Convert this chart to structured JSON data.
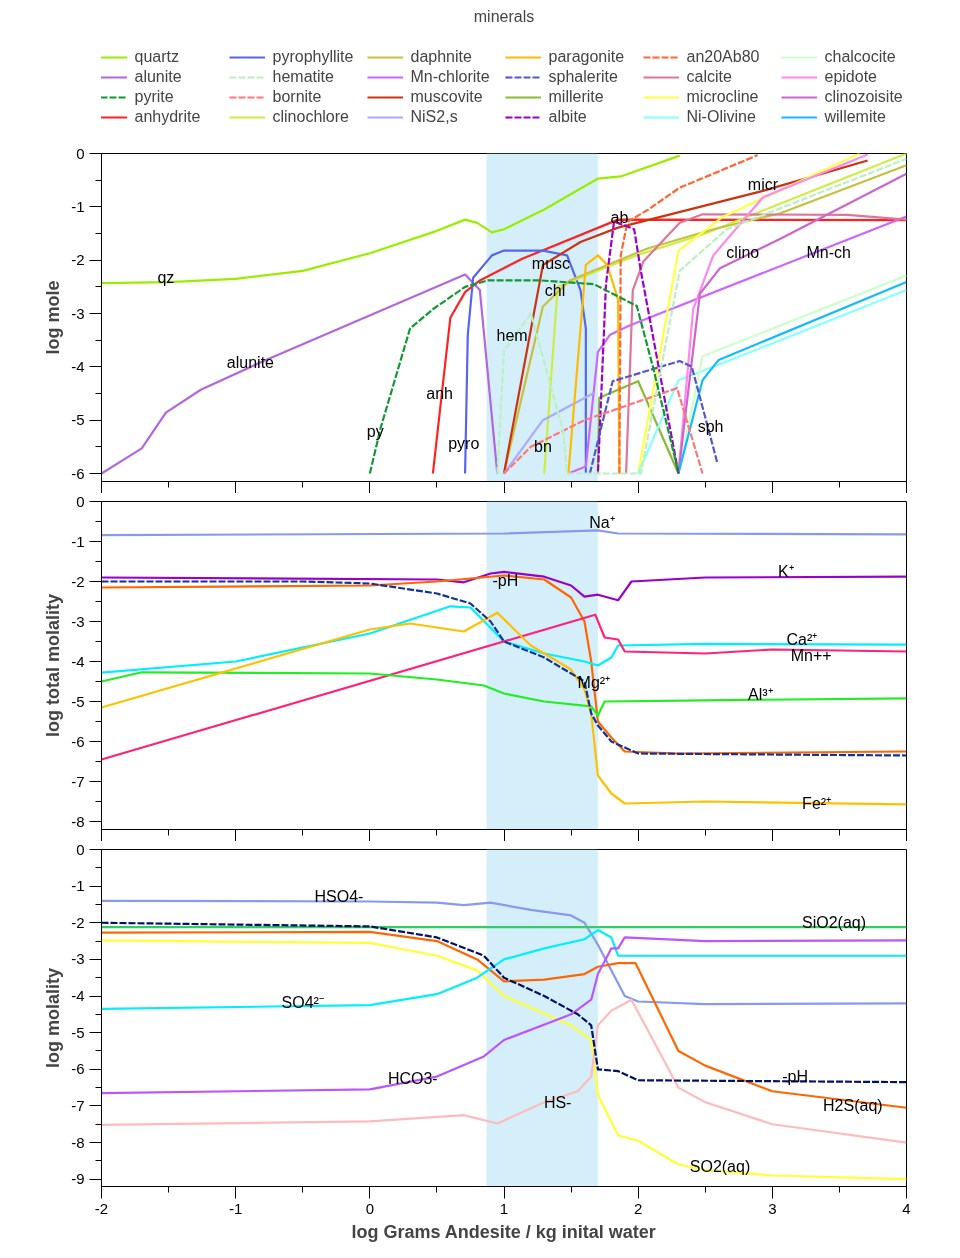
{
  "chart_data": [
    {
      "type": "line",
      "legend_title": "minerals",
      "legend": "top",
      "ylabel": "log mole",
      "tick_labels": "y",
      "xlim": [
        -2,
        4
      ],
      "ylim": [
        -6.15,
        0
      ],
      "xticks": [
        -2,
        {
          "value": -1.5,
          "label": null
        },
        -1,
        {
          "value": -0.5,
          "label": null
        },
        0,
        {
          "value": 0.5,
          "label": null
        },
        1,
        {
          "value": 1.5,
          "label": null
        },
        2,
        {
          "value": 2.5,
          "label": null
        },
        3,
        {
          "value": 3.5,
          "label": null
        },
        4
      ],
      "yticks": [
        0,
        {
          "value": -0.5,
          "label": null
        },
        -1,
        {
          "value": -1.5,
          "label": null
        },
        -2,
        {
          "value": -2.5,
          "label": null
        },
        -3,
        {
          "value": -3.5,
          "label": null
        },
        -4,
        {
          "value": -4.5,
          "label": null
        },
        -5,
        {
          "value": -5.5,
          "label": null
        },
        -6
      ],
      "bands": [
        {
          "axis": "x",
          "from": 0.87,
          "to": 1.7,
          "color": "#c5e9f7"
        }
      ],
      "series": [
        {
          "name": "quartz",
          "color": "#99ee00",
          "x": [
            -2,
            -1.5,
            -1,
            -0.5,
            0,
            0.5,
            0.71,
            0.8,
            0.91,
            1,
            1.3,
            1.7,
            1.87,
            2.31
          ],
          "values": [
            -2.43,
            -2.41,
            -2.35,
            -2.2,
            -1.87,
            -1.45,
            -1.24,
            -1.3,
            -1.48,
            -1.42,
            -1.05,
            -0.47,
            -0.43,
            -0.04
          ]
        },
        {
          "name": "alunite",
          "color": "#b266e0",
          "x": [
            -2,
            -1.7,
            -1.52,
            -1.26,
            -0.8,
            0.71,
            0.82,
            0.95
          ],
          "values": [
            -6,
            -5.53,
            -4.86,
            -4.43,
            -3.9,
            -2.27,
            -2.56,
            -6
          ]
        },
        {
          "name": "pyrite",
          "color": "#119933",
          "line_style": "dashed",
          "x": [
            0,
            0.08,
            0.3,
            0.47,
            0.71,
            0.88,
            1.27,
            1.67,
            1.99,
            2.11,
            2.3
          ],
          "values": [
            -6,
            -5.15,
            -3.28,
            -2.92,
            -2.5,
            -2.38,
            -2.38,
            -2.45,
            -2.86,
            -4.0,
            -5.98
          ]
        },
        {
          "name": "anhydrite",
          "color": "#ff2222",
          "x": [
            0.47,
            0.6,
            0.71,
            0.82,
            1.14,
            1.85,
            4
          ],
          "values": [
            -6,
            -3.08,
            -2.6,
            -2.38,
            -1.97,
            -1.24,
            -1.25
          ]
        },
        {
          "name": "pyrophyllite",
          "color": "#5566ee",
          "x": [
            0.71,
            0.73,
            0.77,
            0.91,
            1.0,
            1.29,
            1.47,
            1.57,
            1.61,
            1.61
          ],
          "values": [
            -6,
            -3.4,
            -2.33,
            -1.91,
            -1.82,
            -1.82,
            -1.91,
            -2.56,
            -3.28,
            -6
          ]
        },
        {
          "name": "hematite",
          "color": "#bbf0c0",
          "line_style": "dashed",
          "x": [
            0.95,
            1.0,
            1.2,
            1.44,
            1.47,
            2.02,
            2.31,
            2.66,
            4
          ],
          "values": [
            -6,
            -3.7,
            -3.0,
            -5.2,
            -6,
            -6,
            -2.2,
            -1.42,
            -0.1
          ]
        },
        {
          "name": "bornite",
          "color": "#ff7777",
          "line_style": "dashed",
          "x": [
            1.0,
            1.2,
            1.6,
            2.29,
            2.48
          ],
          "values": [
            -6,
            -5.5,
            -5.0,
            -4.4,
            -6
          ]
        },
        {
          "name": "clinochlore",
          "color": "#ccee44",
          "x": [
            1.3,
            1.4,
            2.0,
            2.5,
            4
          ],
          "values": [
            -6,
            -2.5,
            -1.9,
            -1.5,
            0
          ]
        },
        {
          "name": "daphnite",
          "color": "#c8c040",
          "x": [
            1.0,
            1.29,
            1.49,
            2.07,
            2.56,
            3.06,
            4
          ],
          "values": [
            -6,
            -2.87,
            -2.38,
            -1.78,
            -1.42,
            -1.12,
            -0.22
          ]
        },
        {
          "name": "Mn-chlorite",
          "color": "#cc66ff",
          "x": [
            1.48,
            1.61,
            1.7,
            1.79,
            1.94,
            4
          ],
          "values": [
            -6,
            -5.87,
            -3.72,
            -3.4,
            -3.22,
            -1.18
          ]
        },
        {
          "name": "muscovite",
          "color": "#cc3311",
          "x": [
            1.0,
            1.29,
            1.57,
            1.85,
            2.46,
            2.93,
            3.71
          ],
          "values": [
            -6,
            -2.09,
            -1.66,
            -1.39,
            -1.0,
            -0.7,
            -0.13
          ]
        },
        {
          "name": "NiS2,s",
          "color": "#aaaaff",
          "x": [
            1.0,
            1.29,
            1.67
          ],
          "values": [
            -6,
            -5.0,
            -4.49
          ]
        },
        {
          "name": "paragonite",
          "color": "#ffbb00",
          "x": [
            1.48,
            1.61,
            1.7,
            1.77,
            1.85,
            1.86
          ],
          "values": [
            -6,
            -2.09,
            -1.91,
            -2.09,
            -2.74,
            -6
          ]
        },
        {
          "name": "sphalerite",
          "color": "#5555cc",
          "line_style": "dashed",
          "x": [
            1.64,
            1.81,
            2.31,
            2.4,
            2.59
          ],
          "values": [
            -6,
            -4.27,
            -3.89,
            -4.0,
            -5.8
          ]
        },
        {
          "name": "millerite",
          "color": "#88bb33",
          "x": [
            1.7,
            1.71,
            2.0,
            2.3
          ],
          "values": [
            -6,
            -4.58,
            -4.27,
            -6
          ]
        },
        {
          "name": "albite",
          "color": "#9900cc",
          "line_style": "dashed",
          "x": [
            1.7,
            1.76,
            1.82,
            1.9,
            1.97,
            2.02,
            2.3
          ],
          "values": [
            -6,
            -2.45,
            -1.28,
            -1.35,
            -1.42,
            -2.2,
            -6
          ]
        },
        {
          "name": "an20Ab80",
          "color": "#ff6633",
          "line_style": "dashed",
          "x": [
            1.86,
            1.87,
            1.92,
            2.07,
            2.31,
            2.56,
            2.89
          ],
          "values": [
            -6,
            -1.91,
            -1.28,
            -1.06,
            -0.64,
            -0.38,
            -0.03
          ]
        },
        {
          "name": "calcite",
          "color": "#dd7799",
          "x": [
            1.91,
            1.96,
            2.04,
            2.31,
            2.48,
            3.56,
            4
          ],
          "values": [
            -6,
            -2.56,
            -2.02,
            -1.3,
            -1.14,
            -1.15,
            -1.24
          ]
        },
        {
          "name": "microcline",
          "color": "#ffff44",
          "x": [
            2.0,
            2.3,
            2.63,
            3.65
          ],
          "values": [
            -6,
            -1.82,
            -1.19,
            0
          ]
        },
        {
          "name": "Ni-Olivine",
          "color": "#88ffff",
          "x": [
            2.0,
            2.3,
            2.56,
            4
          ],
          "values": [
            -6,
            -4.25,
            -4.0,
            -2.56
          ]
        },
        {
          "name": "chalcocite",
          "color": "#ccffcc",
          "x": [
            2.3,
            2.48,
            4
          ],
          "values": [
            -6,
            -3.8,
            -2.29
          ]
        },
        {
          "name": "epidote",
          "color": "#ff88ee",
          "x": [
            2.3,
            2.41,
            2.56,
            2.93,
            3.71
          ],
          "values": [
            -6,
            -2.92,
            -1.91,
            -0.82,
            -0.02
          ]
        },
        {
          "name": "clinozoisite",
          "color": "#cc66cc",
          "x": [
            2.3,
            2.46,
            2.61,
            3.06,
            4
          ],
          "values": [
            -6,
            -2.63,
            -2.15,
            -1.6,
            -0.38
          ]
        },
        {
          "name": "willemite",
          "color": "#11bbff",
          "x": [
            2.3,
            2.48,
            2.6,
            4
          ],
          "values": [
            -6,
            -4.25,
            -3.87,
            -2.41
          ]
        }
      ],
      "annotations": [
        {
          "text": "qz",
          "x": -1.52,
          "y": -2.32
        },
        {
          "text": "alunite",
          "x": -0.89,
          "y": -3.91
        },
        {
          "text": "py",
          "x": 0.04,
          "y": -5.22
        },
        {
          "text": "anh",
          "x": 0.52,
          "y": -4.5
        },
        {
          "text": "pyro",
          "x": 0.7,
          "y": -5.44
        },
        {
          "text": "hem",
          "x": 1.06,
          "y": -3.42
        },
        {
          "text": "bn",
          "x": 1.29,
          "y": -5.5
        },
        {
          "text": "musc",
          "x": 1.35,
          "y": -2.07
        },
        {
          "text": "chl",
          "x": 1.38,
          "y": -2.56
        },
        {
          "text": "ab",
          "x": 1.86,
          "y": -1.2
        },
        {
          "text": "micr",
          "x": 2.93,
          "y": -0.59
        },
        {
          "text": "clino",
          "x": 2.78,
          "y": -1.86
        },
        {
          "text": "Mn-ch",
          "x": 3.42,
          "y": -1.85
        },
        {
          "text": "sph",
          "x": 2.54,
          "y": -5.11
        }
      ]
    },
    {
      "type": "line",
      "ylabel": "log total molality",
      "tick_labels": "y",
      "xlim": [
        -2,
        4
      ],
      "ylim": [
        -8.2,
        0
      ],
      "xticks": [
        -2,
        {
          "value": -1.5,
          "label": null
        },
        -1,
        {
          "value": -0.5,
          "label": null
        },
        0,
        {
          "value": 0.5,
          "label": null
        },
        1,
        {
          "value": 1.5,
          "label": null
        },
        2,
        {
          "value": 2.5,
          "label": null
        },
        3,
        {
          "value": 3.5,
          "label": null
        },
        4
      ],
      "yticks": [
        0,
        {
          "value": -0.5,
          "label": null
        },
        -1,
        {
          "value": -1.5,
          "label": null
        },
        -2,
        {
          "value": -2.5,
          "label": null
        },
        -3,
        {
          "value": -3.5,
          "label": null
        },
        -4,
        {
          "value": -4.5,
          "label": null
        },
        -5,
        {
          "value": -5.5,
          "label": null
        },
        -6,
        {
          "value": -6.5,
          "label": null
        },
        -7,
        {
          "value": -7.5,
          "label": null
        },
        -8
      ],
      "bands": [
        {
          "axis": "x",
          "from": 0.87,
          "to": 1.7,
          "color": "#c5e9f7"
        }
      ],
      "series": [
        {
          "color": "#8899ee",
          "x": [
            -2,
            1,
            1.7,
            1.85,
            4
          ],
          "values": [
            -0.84,
            -0.8,
            -0.72,
            -0.8,
            -0.82
          ]
        },
        {
          "color": "#9900cc",
          "x": [
            -2,
            0.5,
            0.7,
            0.9,
            1.0,
            1.3,
            1.5,
            1.6,
            1.7,
            1.85,
            1.95,
            2.5,
            4
          ],
          "values": [
            -1.9,
            -1.95,
            -2.02,
            -1.8,
            -1.76,
            -1.88,
            -2.1,
            -2.38,
            -2.33,
            -2.47,
            -2.0,
            -1.9,
            -1.88
          ]
        },
        {
          "color": "#ff6600",
          "x": [
            -2,
            0,
            0.5,
            1.0,
            1.3,
            1.5,
            1.6,
            1.65,
            1.7,
            1.8,
            1.9,
            2.3,
            4
          ],
          "values": [
            -2.15,
            -2.1,
            -2.0,
            -1.85,
            -1.95,
            -2.4,
            -3.0,
            -4.0,
            -5.5,
            -5.9,
            -6.25,
            -6.3,
            -6.25
          ]
        },
        {
          "color": "#113399",
          "line_style": "dashed",
          "x": [
            -2,
            -0.5,
            0,
            0.5,
            0.75,
            0.9,
            1.0,
            1.3,
            1.6,
            1.65,
            1.7,
            1.8,
            2.0,
            4
          ],
          "values": [
            -2.0,
            -2.0,
            -2.05,
            -2.3,
            -2.55,
            -3.0,
            -3.5,
            -3.9,
            -4.5,
            -5.3,
            -5.6,
            -6.0,
            -6.3,
            -6.35
          ]
        },
        {
          "color": "#00eeff",
          "x": [
            -2,
            -1,
            0,
            0.6,
            0.75,
            1.0,
            1.3,
            1.6,
            1.7,
            1.8,
            1.85,
            2.5,
            4
          ],
          "values": [
            -4.28,
            -4.0,
            -3.3,
            -2.62,
            -2.65,
            -3.5,
            -3.8,
            -4.0,
            -4.1,
            -3.9,
            -3.6,
            -3.56,
            -3.58
          ]
        },
        {
          "color": "#ff2277",
          "x": [
            -2,
            1.68,
            1.75,
            1.85,
            1.9,
            2.5,
            3,
            4
          ],
          "values": [
            -6.45,
            -2.83,
            -3.4,
            -3.45,
            -3.75,
            -3.8,
            -3.7,
            -3.75
          ]
        },
        {
          "color": "#22ee22",
          "x": [
            -2,
            -1.7,
            0,
            0.5,
            0.85,
            1.0,
            1.3,
            1.65,
            1.7,
            1.75,
            2.5,
            4
          ],
          "values": [
            -4.5,
            -4.27,
            -4.3,
            -4.45,
            -4.6,
            -4.8,
            -5.0,
            -5.12,
            -5.35,
            -5.0,
            -4.97,
            -4.92
          ]
        },
        {
          "color": "#ffc000",
          "x": [
            -2,
            0,
            0.3,
            0.7,
            0.95,
            1.2,
            1.5,
            1.6,
            1.65,
            1.7,
            1.8,
            1.9,
            2.5,
            4
          ],
          "values": [
            -5.15,
            -3.2,
            -3.05,
            -3.25,
            -2.78,
            -3.6,
            -4.2,
            -4.7,
            -5.3,
            -6.85,
            -7.3,
            -7.55,
            -7.5,
            -7.57
          ]
        }
      ],
      "annotations": [
        {
          "text": "Na⁺",
          "x": 1.73,
          "y": -0.53
        },
        {
          "text": "K⁺",
          "x": 3.1,
          "y": -1.76
        },
        {
          "text": "-pH",
          "x": 1.01,
          "y": -1.98
        },
        {
          "text": "Ca²⁺",
          "x": 3.22,
          "y": -3.45
        },
        {
          "text": "Mn++",
          "x": 3.29,
          "y": -3.84
        },
        {
          "text": "Al³⁺",
          "x": 2.91,
          "y": -4.83
        },
        {
          "text": "Mg²⁺",
          "x": 1.67,
          "y": -4.52
        },
        {
          "text": "Fe²⁺",
          "x": 3.33,
          "y": -7.55
        }
      ]
    },
    {
      "type": "line",
      "ylabel": "log molality",
      "xlabel": "log Grams Andesite / kg inital water",
      "xlim": [
        -2,
        4
      ],
      "ylim": [
        -9.2,
        0
      ],
      "xticks": [
        -2,
        {
          "value": -1.5,
          "label": null
        },
        -1,
        {
          "value": -0.5,
          "label": null
        },
        0,
        {
          "value": 0.5,
          "label": null
        },
        1,
        {
          "value": 1.5,
          "label": null
        },
        2,
        {
          "value": 2.5,
          "label": null
        },
        3,
        {
          "value": 3.5,
          "label": null
        },
        4
      ],
      "yticks": [
        0,
        {
          "value": -0.5,
          "label": null
        },
        -1,
        {
          "value": -1.5,
          "label": null
        },
        -2,
        {
          "value": -2.5,
          "label": null
        },
        -3,
        {
          "value": -3.5,
          "label": null
        },
        -4,
        {
          "value": -4.5,
          "label": null
        },
        -5,
        {
          "value": -5.5,
          "label": null
        },
        -6,
        {
          "value": -6.5,
          "label": null
        },
        -7,
        {
          "value": -7.5,
          "label": null
        },
        -8,
        {
          "value": -8.5,
          "label": null
        },
        -9
      ],
      "bands": [
        {
          "axis": "x",
          "from": 0.87,
          "to": 1.7,
          "color": "#c5e9f7"
        }
      ],
      "series": [
        {
          "color": "#8899ee",
          "x": [
            -2,
            0,
            0.5,
            0.7,
            0.9,
            1.2,
            1.5,
            1.6,
            1.7,
            1.8,
            1.9,
            2.0,
            2.5,
            4
          ],
          "values": [
            -1.4,
            -1.42,
            -1.45,
            -1.52,
            -1.45,
            -1.65,
            -1.8,
            -2.0,
            -2.6,
            -3.3,
            -4.0,
            -4.15,
            -4.22,
            -4.2
          ]
        },
        {
          "color": "#33cc66",
          "x": [
            -2,
            4
          ],
          "values": [
            -2.12,
            -2.12
          ]
        },
        {
          "color": "#ffff33",
          "x": [
            -2,
            0,
            0.5,
            0.8,
            1.0,
            1.5,
            1.65,
            1.7,
            1.85,
            2.0,
            2.3,
            2.5,
            3,
            4
          ],
          "values": [
            -2.48,
            -2.55,
            -2.9,
            -3.3,
            -4.0,
            -4.8,
            -5.2,
            -6.7,
            -7.8,
            -7.95,
            -8.6,
            -8.75,
            -8.9,
            -9.0
          ]
        },
        {
          "color": "#ff6600",
          "x": [
            -2,
            0,
            0.5,
            0.8,
            1.0,
            1.3,
            1.6,
            1.7,
            1.85,
            1.98,
            2.3,
            2.5,
            3,
            4
          ],
          "values": [
            -2.27,
            -2.25,
            -2.5,
            -3.0,
            -3.6,
            -3.55,
            -3.4,
            -3.2,
            -3.1,
            -3.1,
            -5.5,
            -5.9,
            -6.6,
            -7.05
          ]
        },
        {
          "color": "#001166",
          "line_style": "dashed",
          "x": [
            -2,
            0,
            0.5,
            0.85,
            0.95,
            1.0,
            1.3,
            1.55,
            1.65,
            1.7,
            1.85,
            2.0,
            4
          ],
          "values": [
            -2.0,
            -2.1,
            -2.4,
            -2.9,
            -3.3,
            -3.5,
            -4.0,
            -4.5,
            -4.8,
            -6.0,
            -6.05,
            -6.3,
            -6.35
          ]
        },
        {
          "color": "#00eeff",
          "x": [
            -2,
            0,
            0.5,
            0.8,
            1.0,
            1.3,
            1.6,
            1.7,
            1.8,
            1.85,
            2.5,
            4
          ],
          "values": [
            -4.35,
            -4.25,
            -3.95,
            -3.5,
            -3.0,
            -2.7,
            -2.45,
            -2.2,
            -2.4,
            -2.9,
            -2.9,
            -2.9
          ]
        },
        {
          "color": "#bb55ff",
          "x": [
            -2,
            0,
            0.5,
            0.85,
            1.0,
            1.5,
            1.65,
            1.7,
            1.8,
            1.85,
            1.9,
            2.5,
            4
          ],
          "values": [
            -6.65,
            -6.55,
            -6.2,
            -5.65,
            -5.2,
            -4.5,
            -4.1,
            -3.4,
            -2.7,
            -2.7,
            -2.4,
            -2.5,
            -2.48
          ]
        },
        {
          "color": "#ffbbbb",
          "x": [
            -2,
            0,
            0.7,
            0.95,
            1.3,
            1.55,
            1.65,
            1.7,
            1.8,
            1.95,
            2.3,
            2.5,
            3,
            4
          ],
          "values": [
            -7.52,
            -7.42,
            -7.25,
            -7.48,
            -6.9,
            -6.6,
            -6.2,
            -4.8,
            -4.4,
            -4.1,
            -6.5,
            -6.9,
            -7.5,
            -8.0
          ]
        }
      ],
      "annotations": [
        {
          "text": "HSO4-",
          "x": -0.23,
          "y": -1.28
        },
        {
          "text": "SiO2(aq)",
          "x": 3.46,
          "y": -1.99
        },
        {
          "text": "SO4²⁻",
          "x": -0.5,
          "y": -4.17
        },
        {
          "text": "HCO3-",
          "x": 0.32,
          "y": -6.25
        },
        {
          "text": "HS-",
          "x": 1.4,
          "y": -6.91
        },
        {
          "text": "-pH",
          "x": 3.17,
          "y": -6.2
        },
        {
          "text": "H2S(aq)",
          "x": 3.6,
          "y": -7.0
        },
        {
          "text": "SO2(aq)",
          "x": 2.61,
          "y": -8.65
        }
      ]
    }
  ]
}
